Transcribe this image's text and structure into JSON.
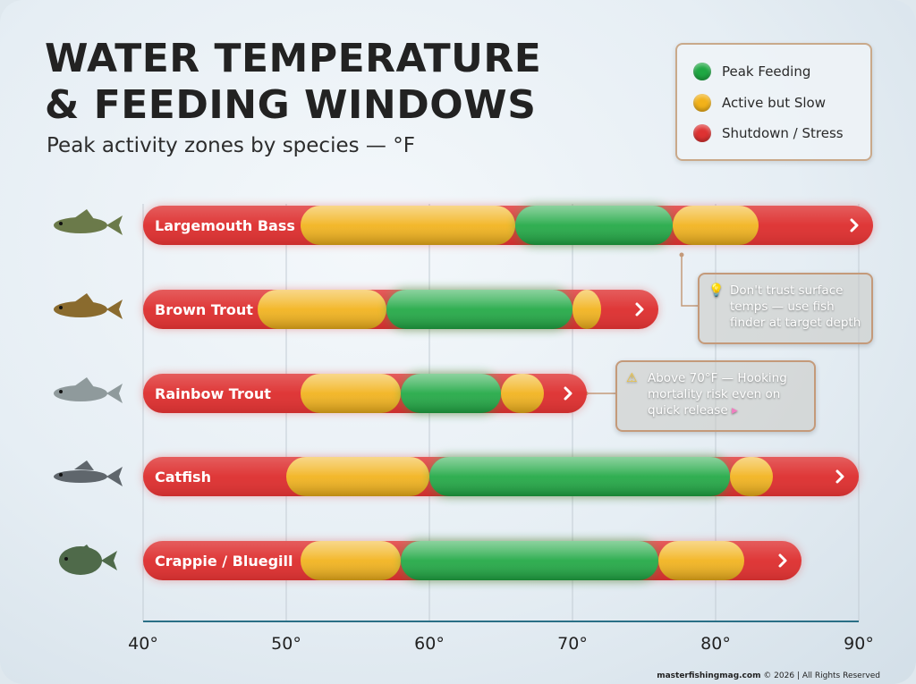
{
  "title_line1": "WATER TEMPERATURE",
  "title_line2": "& FEEDING WINDOWS",
  "subtitle": "Peak activity zones by species — °F",
  "legend": [
    {
      "label": "Peak Feeding",
      "color": "#1fa843"
    },
    {
      "label": "Active but Slow",
      "color": "#f2b21a"
    },
    {
      "label": "Shutdown / Stress",
      "color": "#de3232"
    }
  ],
  "callouts": [
    {
      "icon": "lightbulb-icon",
      "glyph": "💡",
      "text": "Don't trust surface temps — use fish finder at target depth"
    },
    {
      "icon": "warning-icon",
      "glyph": "⚠",
      "text": "Above 70°F — Hooking mortality risk even on quick release",
      "arrow": "▸"
    }
  ],
  "footer": {
    "site": "masterfishingmag.com",
    "rest": " © 2026 | All Rights Reserved"
  },
  "chart_data": {
    "type": "bar",
    "orientation": "horizontal-range",
    "xlabel": "",
    "xlim": [
      40,
      90
    ],
    "ticks": [
      "40°",
      "50°",
      "60°",
      "70°",
      "80°",
      "90°"
    ],
    "tick_values": [
      40,
      50,
      60,
      70,
      80,
      90
    ],
    "grid": true,
    "colors": {
      "stress": "#de3232",
      "slow": "#f2b21a",
      "peak": "#1fa843"
    },
    "species": [
      {
        "name": "Largemouth Bass",
        "icon": "bass-icon",
        "segments": [
          [
            "stress",
            40,
            51
          ],
          [
            "slow",
            51,
            66
          ],
          [
            "peak",
            66,
            77
          ],
          [
            "slow",
            77,
            83
          ],
          [
            "stress",
            83,
            91
          ]
        ]
      },
      {
        "name": "Brown Trout",
        "icon": "brown-trout-icon",
        "segments": [
          [
            "stress",
            40,
            48
          ],
          [
            "slow",
            48,
            57
          ],
          [
            "peak",
            57,
            70
          ],
          [
            "slow",
            70,
            72
          ],
          [
            "stress",
            72,
            76
          ]
        ]
      },
      {
        "name": "Rainbow Trout",
        "icon": "rainbow-trout-icon",
        "segments": [
          [
            "stress",
            40,
            51
          ],
          [
            "slow",
            51,
            58
          ],
          [
            "peak",
            58,
            65
          ],
          [
            "slow",
            65,
            68
          ],
          [
            "stress",
            68,
            71
          ]
        ]
      },
      {
        "name": "Catfish",
        "icon": "catfish-icon",
        "segments": [
          [
            "stress",
            40,
            50
          ],
          [
            "slow",
            50,
            60
          ],
          [
            "peak",
            60,
            81
          ],
          [
            "slow",
            81,
            84
          ],
          [
            "stress",
            84,
            90
          ]
        ]
      },
      {
        "name": "Crappie / Bluegill",
        "icon": "sunfish-icon",
        "segments": [
          [
            "stress",
            40,
            51
          ],
          [
            "slow",
            51,
            58
          ],
          [
            "peak",
            58,
            76
          ],
          [
            "slow",
            76,
            82
          ],
          [
            "stress",
            82,
            86
          ]
        ]
      }
    ]
  }
}
